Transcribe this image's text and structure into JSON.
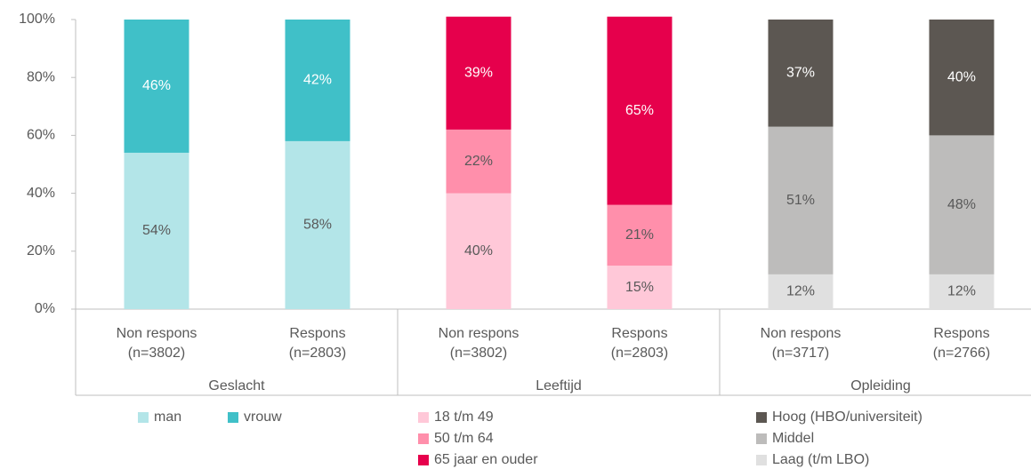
{
  "chart_data": {
    "type": "bar",
    "stacked": true,
    "ylim": [
      0,
      100
    ],
    "yticks": [
      {
        "value": 0,
        "label": "0%"
      },
      {
        "value": 20,
        "label": "20%"
      },
      {
        "value": 40,
        "label": "40%"
      },
      {
        "value": 60,
        "label": "60%"
      },
      {
        "value": 80,
        "label": "80%"
      },
      {
        "value": 100,
        "label": "100%"
      }
    ],
    "groups": [
      {
        "name": "Geslacht",
        "categories": [
          [
            "Non respons",
            "(n=3802)"
          ],
          [
            "Respons",
            "(n=2803)"
          ]
        ],
        "series": [
          {
            "name": "man",
            "color": "#b3e5e8",
            "label_color": "#595959",
            "values": [
              54,
              58
            ],
            "value_labels": [
              "54%",
              "58%"
            ]
          },
          {
            "name": "vrouw",
            "color": "#40c0c8",
            "label_color": "#ffffff",
            "values": [
              46,
              42
            ],
            "value_labels": [
              "46%",
              "42%"
            ]
          }
        ]
      },
      {
        "name": "Leeftijd",
        "categories": [
          [
            "Non respons",
            "(n=3802)"
          ],
          [
            "Respons",
            "(n=2803)"
          ]
        ],
        "series": [
          {
            "name": "18 t/m 49",
            "color": "#ffc8d8",
            "label_color": "#595959",
            "values": [
              40,
              15
            ],
            "value_labels": [
              "40%",
              "15%"
            ]
          },
          {
            "name": "50 t/m 64",
            "color": "#ff8fab",
            "label_color": "#595959",
            "values": [
              22,
              21
            ],
            "value_labels": [
              "22%",
              "21%"
            ]
          },
          {
            "name": "65 jaar en ouder",
            "color": "#e6004c",
            "label_color": "#ffffff",
            "values": [
              39,
              65
            ],
            "value_labels": [
              "39%",
              "65%"
            ]
          }
        ]
      },
      {
        "name": "Opleiding",
        "categories": [
          [
            "Non respons",
            "(n=3717)"
          ],
          [
            "Respons",
            "(n=2766)"
          ]
        ],
        "series": [
          {
            "name": "Laag (t/m LBO)",
            "color": "#e0e0e0",
            "label_color": "#595959",
            "values": [
              12,
              12
            ],
            "value_labels": [
              "12%",
              "12%"
            ]
          },
          {
            "name": "Middel",
            "color": "#bdbcbb",
            "label_color": "#595959",
            "values": [
              51,
              48
            ],
            "value_labels": [
              "51%",
              "48%"
            ]
          },
          {
            "name": "Hoog (HBO/universiteit)",
            "color": "#5c5752",
            "label_color": "#ffffff",
            "values": [
              37,
              40
            ],
            "value_labels": [
              "37%",
              "40%"
            ]
          }
        ]
      }
    ]
  }
}
